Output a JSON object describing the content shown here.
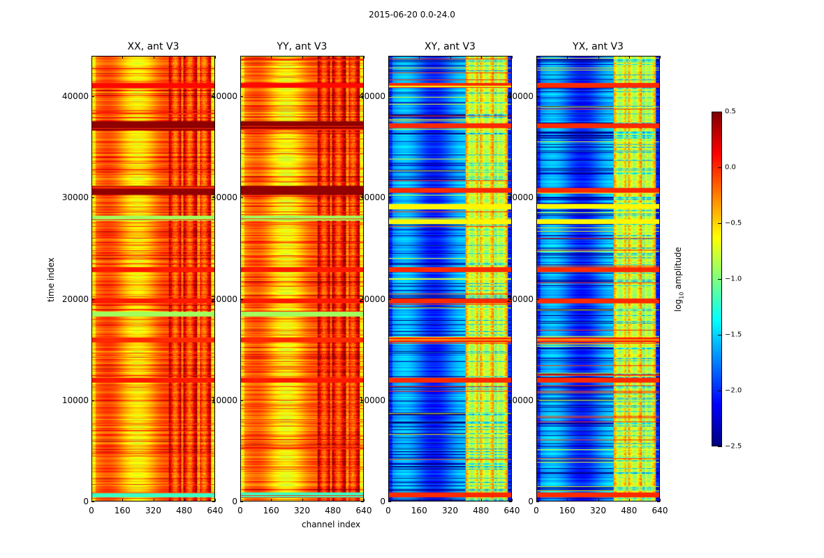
{
  "figure": {
    "suptitle": "2015-06-20 0.0-24.0",
    "xlabel": "channel index",
    "ylabel": "time index"
  },
  "colorbar": {
    "label_prefix": "log",
    "label_sub": "10",
    "label_suffix": " amplitude",
    "vmin": -2.5,
    "vmax": 0.5,
    "ticks": [
      "0.5",
      "0.0",
      "−0.5",
      "−1.0",
      "−1.5",
      "−2.0",
      "−2.5"
    ],
    "tick_values": [
      0.5,
      0.0,
      -0.5,
      -1.0,
      -1.5,
      -2.0,
      -2.5
    ],
    "colormap": "jet"
  },
  "chart_data": [
    {
      "type": "heatmap",
      "title": "XX, ant V3",
      "xlabel": "",
      "ylabel": "time index",
      "xlim": [
        0,
        640
      ],
      "ylim": [
        0,
        44000
      ],
      "xticks": [
        "0",
        "160",
        "320",
        "480",
        "640"
      ],
      "yticks": [
        "0",
        "10000",
        "20000",
        "30000",
        "40000"
      ],
      "base_level": -0.35,
      "rfi_channel_range": [
        400,
        620
      ],
      "rfi_level": 0.05,
      "flag_bands": [
        {
          "t": 600,
          "v": -1.2
        },
        {
          "t": 12000,
          "v": 0.05
        },
        {
          "t": 16000,
          "v": 0.0
        },
        {
          "t": 19800,
          "v": 0.05
        },
        {
          "t": 22900,
          "v": 0.05
        },
        {
          "t": 30800,
          "v": 0.45
        },
        {
          "t": 37200,
          "v": 0.45
        },
        {
          "t": 41200,
          "v": 0.1
        },
        {
          "t": 18500,
          "v": -0.9
        },
        {
          "t": 28000,
          "v": -0.9
        }
      ]
    },
    {
      "type": "heatmap",
      "title": "YY, ant V3",
      "xlabel": "channel index",
      "ylabel": "",
      "xlim": [
        0,
        640
      ],
      "ylim": [
        0,
        44000
      ],
      "xticks": [
        "0",
        "160",
        "320",
        "480",
        "640"
      ],
      "yticks": [
        "0",
        "10000",
        "20000",
        "30000",
        "40000"
      ],
      "base_level": -0.4,
      "rfi_channel_range": [
        400,
        620
      ],
      "rfi_level": 0.1,
      "flag_bands": [
        {
          "t": 600,
          "v": -1.2
        },
        {
          "t": 12000,
          "v": 0.05
        },
        {
          "t": 16000,
          "v": 0.0
        },
        {
          "t": 19800,
          "v": 0.05
        },
        {
          "t": 22900,
          "v": 0.05
        },
        {
          "t": 30800,
          "v": 0.45
        },
        {
          "t": 37200,
          "v": 0.45
        },
        {
          "t": 41200,
          "v": 0.1
        },
        {
          "t": 18500,
          "v": -0.9
        },
        {
          "t": 28000,
          "v": -0.9
        }
      ]
    },
    {
      "type": "heatmap",
      "title": "XY, ant V3",
      "xlabel": "",
      "ylabel": "",
      "xlim": [
        0,
        640
      ],
      "ylim": [
        0,
        44000
      ],
      "xticks": [
        "0",
        "160",
        "320",
        "480",
        "640"
      ],
      "yticks": [
        "0",
        "10000",
        "20000",
        "30000",
        "40000"
      ],
      "base_level": -1.8,
      "rfi_channel_range": [
        400,
        620
      ],
      "rfi_level": -0.6,
      "flag_bands": [
        {
          "t": 600,
          "v": 0.0
        },
        {
          "t": 12000,
          "v": 0.0
        },
        {
          "t": 16000,
          "v": 0.0
        },
        {
          "t": 19800,
          "v": 0.0
        },
        {
          "t": 22900,
          "v": 0.0
        },
        {
          "t": 30800,
          "v": 0.0
        },
        {
          "t": 29200,
          "v": -0.6
        },
        {
          "t": 37200,
          "v": 0.0
        },
        {
          "t": 41200,
          "v": 0.0
        },
        {
          "t": 27700,
          "v": -0.6
        }
      ]
    },
    {
      "type": "heatmap",
      "title": "YX, ant V3",
      "xlabel": "",
      "ylabel": "",
      "xlim": [
        0,
        640
      ],
      "ylim": [
        0,
        44000
      ],
      "xticks": [
        "0",
        "160",
        "320",
        "480",
        "640"
      ],
      "yticks": [
        "0",
        "10000",
        "20000",
        "30000",
        "40000"
      ],
      "base_level": -1.8,
      "rfi_channel_range": [
        400,
        620
      ],
      "rfi_level": -0.6,
      "flag_bands": [
        {
          "t": 600,
          "v": 0.0
        },
        {
          "t": 12000,
          "v": 0.0
        },
        {
          "t": 16000,
          "v": 0.0
        },
        {
          "t": 19800,
          "v": 0.0
        },
        {
          "t": 22900,
          "v": 0.0
        },
        {
          "t": 30800,
          "v": 0.0
        },
        {
          "t": 29200,
          "v": -0.6
        },
        {
          "t": 37200,
          "v": 0.0
        },
        {
          "t": 41200,
          "v": 0.0
        },
        {
          "t": 27700,
          "v": -0.6
        }
      ]
    }
  ]
}
